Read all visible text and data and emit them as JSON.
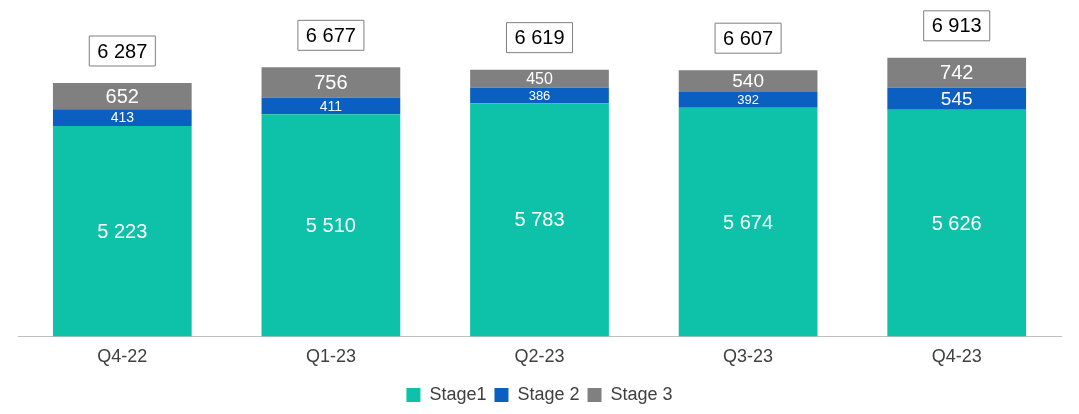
{
  "chart_data": {
    "type": "bar",
    "stacked": true,
    "categories": [
      "Q4-22",
      "Q1-23",
      "Q2-23",
      "Q3-23",
      "Q4-23"
    ],
    "series": [
      {
        "name": "Stage1",
        "color": "#0dc2a8",
        "values": [
          5223,
          5510,
          5783,
          5674,
          5626
        ]
      },
      {
        "name": "Stage 2",
        "color": "#0b5fc0",
        "values": [
          413,
          411,
          386,
          392,
          545
        ]
      },
      {
        "name": "Stage 3",
        "color": "#808080",
        "values": [
          652,
          756,
          450,
          540,
          742
        ]
      }
    ],
    "data_labels": true,
    "totals": [
      "6 287",
      "6 677",
      "6 619",
      "6 607",
      "6 913"
    ],
    "legend": "bottom",
    "grid": false
  }
}
